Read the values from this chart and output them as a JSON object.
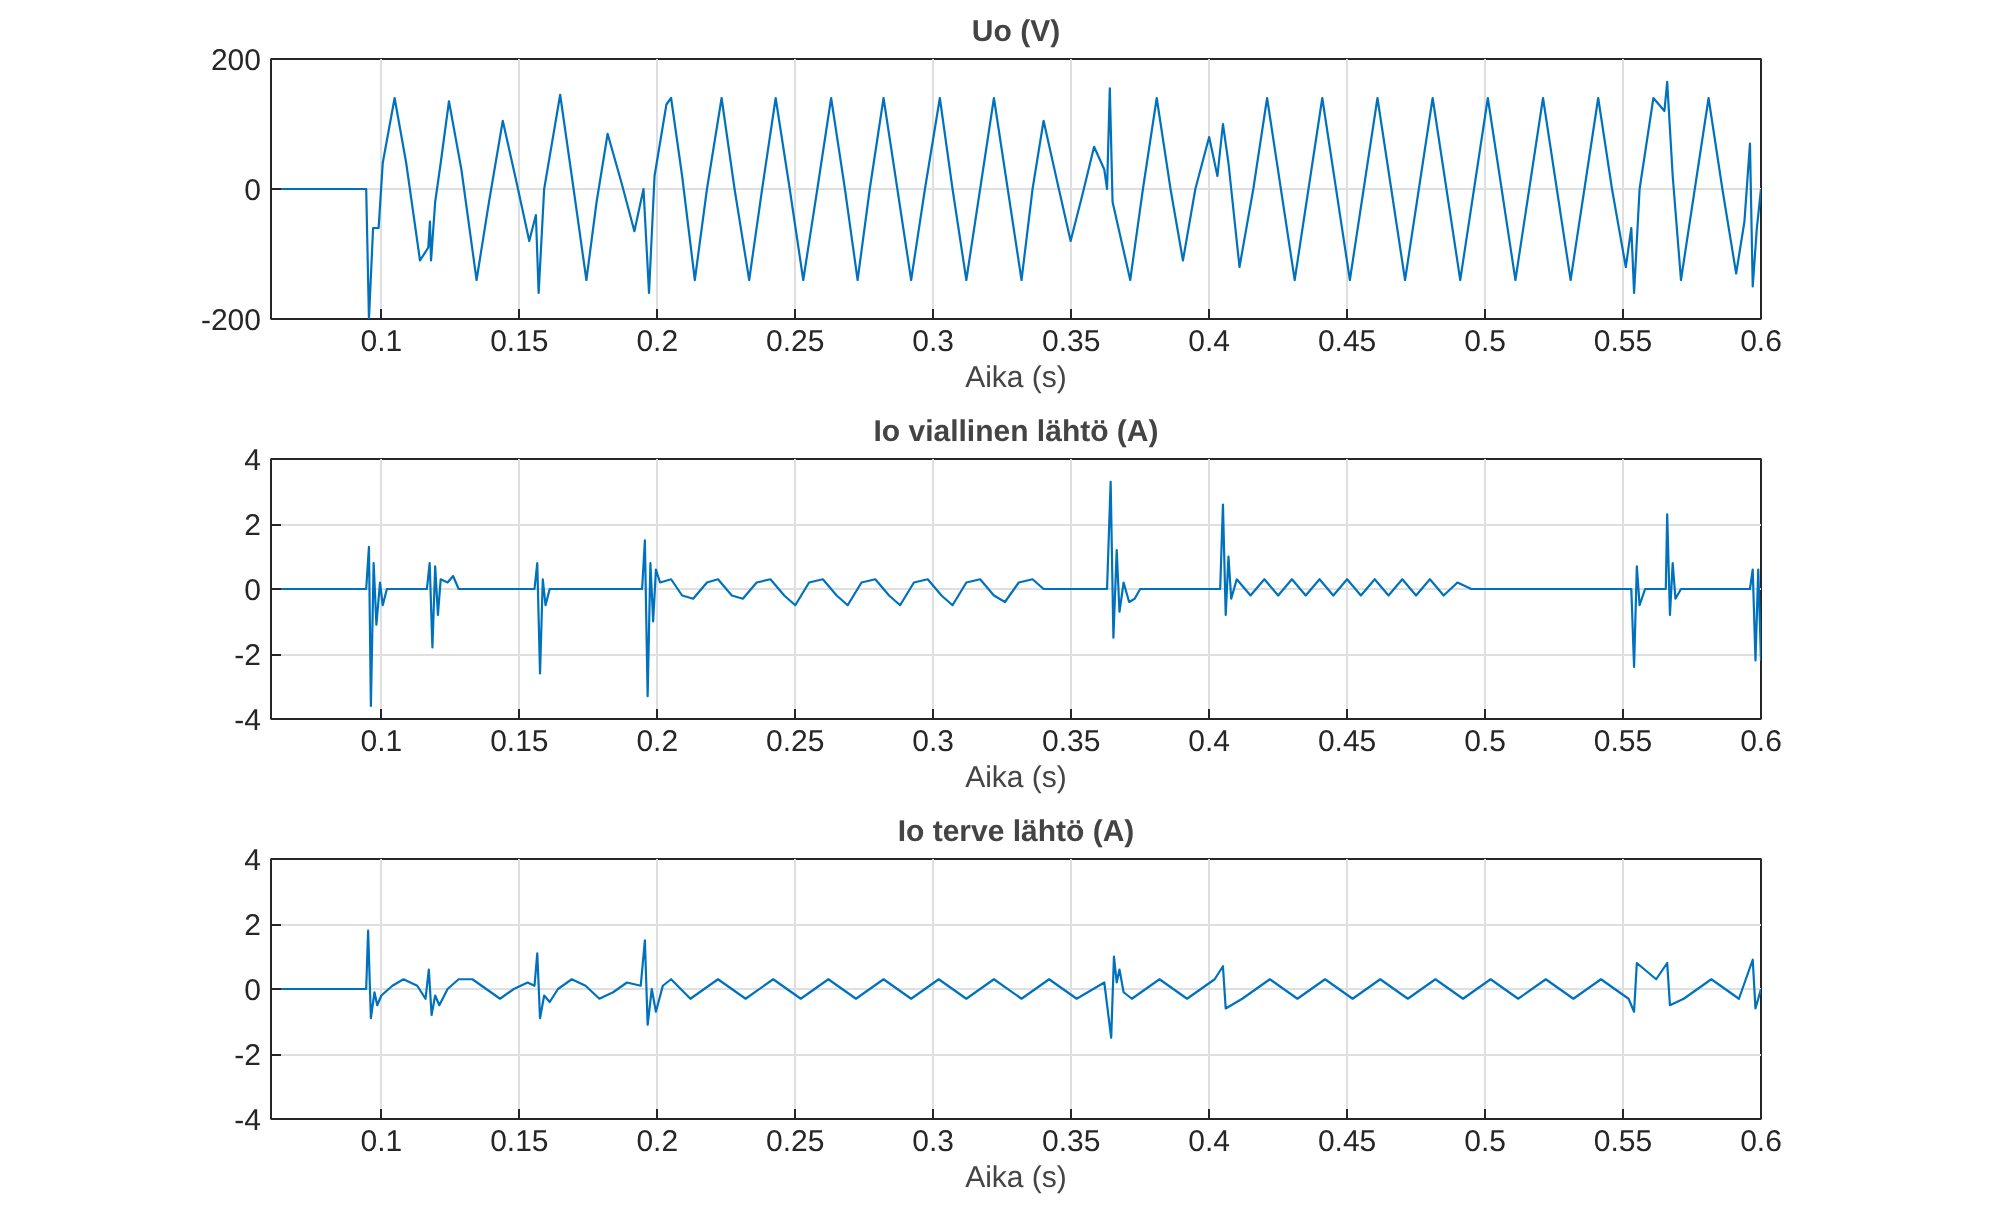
{
  "chart_data": [
    {
      "type": "line",
      "title": "Uo (V)",
      "xlabel": "Aika (s)",
      "xlim": [
        0.06,
        0.6
      ],
      "xticks": [
        0.1,
        0.15,
        0.2,
        0.25,
        0.3,
        0.35,
        0.4,
        0.45,
        0.5,
        0.55,
        0.6
      ],
      "ylim": [
        -200,
        200
      ],
      "yticks": [
        -200,
        0,
        200
      ],
      "grid": true,
      "series": [
        {
          "color": "#0072bd",
          "x": [
            0.06,
            0.0945,
            0.0955,
            0.097,
            0.099,
            0.1005,
            0.1048,
            0.109,
            0.114,
            0.117,
            0.1176,
            0.118,
            0.1195,
            0.1215,
            0.1245,
            0.129,
            0.1345,
            0.139,
            0.144,
            0.149,
            0.1536,
            0.156,
            0.157,
            0.159,
            0.1648,
            0.169,
            0.1743,
            0.178,
            0.182,
            0.187,
            0.1917,
            0.195,
            0.197,
            0.199,
            0.2033,
            0.205,
            0.209,
            0.2136,
            0.218,
            0.2233,
            0.228,
            0.2333,
            0.238,
            0.2429,
            0.248,
            0.2529,
            0.258,
            0.263,
            0.268,
            0.2726,
            0.277,
            0.282,
            0.287,
            0.292,
            0.297,
            0.3024,
            0.307,
            0.312,
            0.317,
            0.322,
            0.327,
            0.332,
            0.336,
            0.34,
            0.345,
            0.3498,
            0.354,
            0.3583,
            0.362,
            0.363,
            0.364,
            0.365,
            0.3714,
            0.376,
            0.381,
            0.386,
            0.3905,
            0.395,
            0.4,
            0.403,
            0.405,
            0.407,
            0.411,
            0.416,
            0.421,
            0.426,
            0.431,
            0.436,
            0.441,
            0.446,
            0.451,
            0.456,
            0.461,
            0.466,
            0.471,
            0.476,
            0.481,
            0.486,
            0.491,
            0.496,
            0.501,
            0.506,
            0.511,
            0.516,
            0.521,
            0.526,
            0.531,
            0.536,
            0.541,
            0.546,
            0.551,
            0.553,
            0.554,
            0.556,
            0.561,
            0.565,
            0.566,
            0.568,
            0.571,
            0.576,
            0.581,
            0.586,
            0.591,
            0.594,
            0.596,
            0.597,
            0.5985,
            0.6
          ],
          "values": [
            0,
            0,
            -200,
            -60,
            -60,
            40,
            140,
            40,
            -110,
            -90,
            -50,
            -110,
            -20,
            40,
            135,
            30,
            -140,
            -20,
            105,
            10,
            -80,
            -40,
            -160,
            0,
            145,
            20,
            -140,
            -20,
            85,
            10,
            -65,
            0,
            -160,
            20,
            130,
            140,
            20,
            -140,
            0,
            140,
            0,
            -140,
            0,
            140,
            0,
            -140,
            0,
            140,
            0,
            -140,
            0,
            140,
            0,
            -140,
            0,
            140,
            0,
            -140,
            0,
            140,
            0,
            -140,
            0,
            105,
            10,
            -80,
            -10,
            65,
            30,
            0,
            155,
            -20,
            -140,
            0,
            140,
            0,
            -110,
            0,
            80,
            20,
            100,
            40,
            -120,
            0,
            140,
            0,
            -140,
            0,
            140,
            0,
            -140,
            0,
            140,
            0,
            -140,
            0,
            140,
            0,
            -140,
            0,
            140,
            0,
            -140,
            0,
            140,
            0,
            -140,
            0,
            140,
            0,
            -120,
            -60,
            -160,
            0,
            140,
            120,
            165,
            20,
            -140,
            0,
            140,
            0,
            -130,
            -50,
            70,
            -150,
            -60,
            0
          ]
        }
      ]
    },
    {
      "type": "line",
      "title": "Io viallinen lähtö (A)",
      "xlabel": "Aika (s)",
      "xlim": [
        0.06,
        0.6
      ],
      "xticks": [
        0.1,
        0.15,
        0.2,
        0.25,
        0.3,
        0.35,
        0.4,
        0.45,
        0.5,
        0.55,
        0.6
      ],
      "ylim": [
        -4,
        4
      ],
      "yticks": [
        -4,
        -2,
        0,
        2,
        4
      ],
      "grid": true,
      "series": [
        {
          "color": "#0072bd",
          "x": [
            0.06,
            0.0945,
            0.0955,
            0.0962,
            0.0972,
            0.0982,
            0.0995,
            0.1005,
            0.102,
            0.1165,
            0.1175,
            0.1185,
            0.1195,
            0.1205,
            0.1215,
            0.124,
            0.126,
            0.128,
            0.1555,
            0.1565,
            0.1575,
            0.1585,
            0.1595,
            0.161,
            0.1945,
            0.1955,
            0.1965,
            0.1975,
            0.1985,
            0.1995,
            0.201,
            0.205,
            0.209,
            0.213,
            0.218,
            0.222,
            0.227,
            0.231,
            0.236,
            0.241,
            0.246,
            0.25,
            0.255,
            0.26,
            0.265,
            0.269,
            0.274,
            0.279,
            0.284,
            0.288,
            0.293,
            0.298,
            0.303,
            0.307,
            0.312,
            0.317,
            0.322,
            0.326,
            0.331,
            0.336,
            0.34,
            0.363,
            0.3643,
            0.3653,
            0.3665,
            0.3675,
            0.369,
            0.371,
            0.373,
            0.375,
            0.404,
            0.405,
            0.406,
            0.407,
            0.408,
            0.41,
            0.415,
            0.42,
            0.425,
            0.43,
            0.435,
            0.44,
            0.445,
            0.45,
            0.455,
            0.46,
            0.465,
            0.47,
            0.475,
            0.48,
            0.485,
            0.49,
            0.495,
            0.553,
            0.554,
            0.555,
            0.556,
            0.558,
            0.5655,
            0.566,
            0.567,
            0.568,
            0.569,
            0.571,
            0.596,
            0.597,
            0.598,
            0.599,
            0.6
          ],
          "values": [
            0,
            0,
            1.3,
            -3.6,
            0.8,
            -1.1,
            0.2,
            -0.5,
            0,
            0,
            0.8,
            -1.8,
            0.7,
            -0.8,
            0.3,
            0.2,
            0.4,
            0,
            0,
            0.8,
            -2.6,
            0.3,
            -0.5,
            0,
            0,
            1.5,
            -3.3,
            0.8,
            -1,
            0.6,
            0.2,
            0.3,
            -0.2,
            -0.3,
            0.2,
            0.3,
            -0.2,
            -0.3,
            0.2,
            0.3,
            -0.2,
            -0.5,
            0.2,
            0.3,
            -0.2,
            -0.5,
            0.2,
            0.3,
            -0.2,
            -0.5,
            0.2,
            0.3,
            -0.2,
            -0.5,
            0.2,
            0.3,
            -0.2,
            -0.4,
            0.2,
            0.3,
            0,
            0,
            3.3,
            -1.5,
            1.2,
            -0.7,
            0.2,
            -0.4,
            -0.3,
            0,
            0,
            2.6,
            -0.8,
            1,
            -0.3,
            0.3,
            -0.2,
            0.3,
            -0.2,
            0.3,
            -0.2,
            0.3,
            -0.2,
            0.3,
            -0.2,
            0.3,
            -0.2,
            0.3,
            -0.2,
            0.3,
            -0.2,
            0.2,
            0,
            0,
            -2.4,
            0.7,
            -0.5,
            0,
            0,
            2.3,
            -0.8,
            0.8,
            -0.3,
            0,
            0,
            0.6,
            -2.2,
            0.6,
            -2.2
          ]
        }
      ]
    },
    {
      "type": "line",
      "title": "Io terve lähtö (A)",
      "xlabel": "Aika (s)",
      "xlim": [
        0.06,
        0.6
      ],
      "xticks": [
        0.1,
        0.15,
        0.2,
        0.25,
        0.3,
        0.35,
        0.4,
        0.45,
        0.5,
        0.55,
        0.6
      ],
      "ylim": [
        -4,
        4
      ],
      "yticks": [
        -4,
        -2,
        0,
        2,
        4
      ],
      "grid": true,
      "series": [
        {
          "color": "#0072bd",
          "x": [
            0.06,
            0.0945,
            0.0952,
            0.0962,
            0.0975,
            0.0985,
            0.1,
            0.104,
            0.108,
            0.113,
            0.116,
            0.1172,
            0.1182,
            0.1195,
            0.121,
            0.124,
            0.128,
            0.133,
            0.138,
            0.143,
            0.148,
            0.153,
            0.1555,
            0.1565,
            0.1575,
            0.159,
            0.161,
            0.164,
            0.169,
            0.174,
            0.179,
            0.184,
            0.189,
            0.194,
            0.1955,
            0.1965,
            0.198,
            0.1995,
            0.202,
            0.205,
            0.212,
            0.222,
            0.232,
            0.242,
            0.252,
            0.262,
            0.272,
            0.282,
            0.292,
            0.302,
            0.312,
            0.322,
            0.332,
            0.342,
            0.352,
            0.362,
            0.3645,
            0.3655,
            0.3665,
            0.3675,
            0.369,
            0.372,
            0.382,
            0.392,
            0.402,
            0.405,
            0.406,
            0.412,
            0.422,
            0.432,
            0.442,
            0.452,
            0.462,
            0.472,
            0.482,
            0.492,
            0.502,
            0.512,
            0.522,
            0.532,
            0.542,
            0.552,
            0.554,
            0.555,
            0.562,
            0.566,
            0.567,
            0.572,
            0.582,
            0.592,
            0.597,
            0.598,
            0.6
          ],
          "values": [
            0,
            0,
            1.8,
            -0.9,
            -0.1,
            -0.5,
            -0.2,
            0.1,
            0.3,
            0.1,
            -0.3,
            0.6,
            -0.8,
            -0.2,
            -0.5,
            0,
            0.3,
            0.3,
            0,
            -0.3,
            0,
            0.2,
            0.1,
            1.1,
            -0.9,
            -0.2,
            -0.4,
            0,
            0.3,
            0.1,
            -0.3,
            -0.1,
            0.2,
            0.1,
            1.5,
            -1.1,
            0,
            -0.7,
            0.1,
            0.3,
            -0.3,
            0.3,
            -0.3,
            0.3,
            -0.3,
            0.3,
            -0.3,
            0.3,
            -0.3,
            0.3,
            -0.3,
            0.3,
            -0.3,
            0.3,
            -0.3,
            0.2,
            -1.5,
            1,
            0.2,
            0.6,
            -0.1,
            -0.3,
            0.3,
            -0.3,
            0.3,
            0.7,
            -0.6,
            -0.3,
            0.3,
            -0.3,
            0.3,
            -0.3,
            0.3,
            -0.3,
            0.3,
            -0.3,
            0.3,
            -0.3,
            0.3,
            -0.3,
            0.3,
            -0.3,
            -0.7,
            0.8,
            0.3,
            0.8,
            -0.5,
            -0.3,
            0.3,
            -0.3,
            0.9,
            -0.6,
            0
          ]
        }
      ]
    }
  ]
}
